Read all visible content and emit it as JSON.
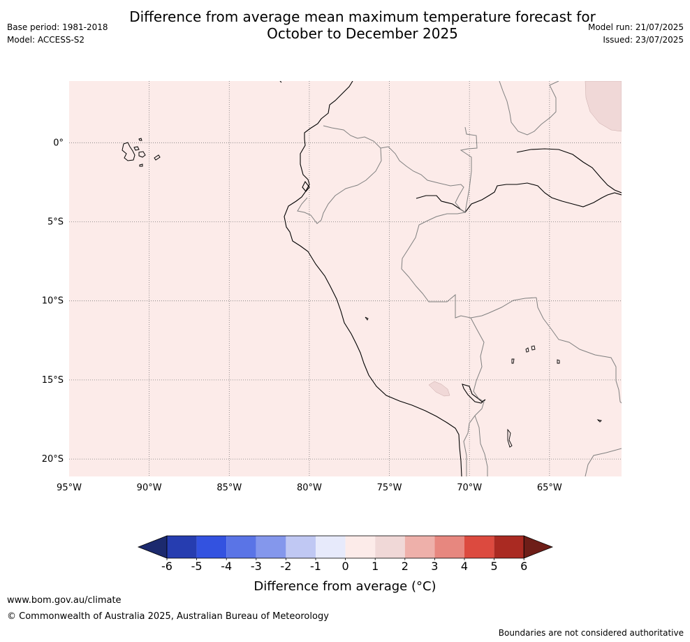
{
  "header": {
    "title_line1": "Difference from average mean maximum temperature forecast for",
    "title_line2": "October to December 2025",
    "base_period": "Base period: 1981-2018",
    "model": "Model: ACCESS-S2",
    "model_run": "Model run: 21/07/2025",
    "issued": "Issued: 23/07/2025"
  },
  "map": {
    "lon_range": [
      -95,
      -60.5
    ],
    "lat_range": [
      3.9,
      -21.1
    ],
    "background_category": "0 to 1",
    "longitude_labels": [
      "95°W",
      "90°W",
      "85°W",
      "80°W",
      "75°W",
      "70°W",
      "65°W"
    ],
    "latitude_labels": [
      "0°",
      "5°S",
      "10°S",
      "15°S",
      "20°S"
    ]
  },
  "legend": {
    "title": "Difference from average (°C)",
    "tick_labels": [
      "-6",
      "-5",
      "-4",
      "-3",
      "-2",
      "-1",
      "0",
      "1",
      "2",
      "3",
      "4",
      "5",
      "6"
    ],
    "colors": {
      "below_-6": "#1c2a6e",
      "-6_-5": "#263db0",
      "-5_-4": "#3352e0",
      "-4_-3": "#5a74e6",
      "-3_-2": "#8497ec",
      "-2_-1": "#c0c8f3",
      "-1_0": "#e7eafb",
      "0_1": "#fcebe9",
      "1_2": "#f0d8d7",
      "2_3": "#eeb0aa",
      "3_4": "#e7877f",
      "4_5": "#dc4a3f",
      "5_6": "#aa2a22",
      "above_6": "#6e1e18"
    }
  },
  "footer": {
    "website": "www.bom.gov.au/climate",
    "copyright": "© Commonwealth of Australia 2025, Australian Bureau of Meteorology",
    "disclaimer": "Boundaries are not considered authoritative"
  }
}
